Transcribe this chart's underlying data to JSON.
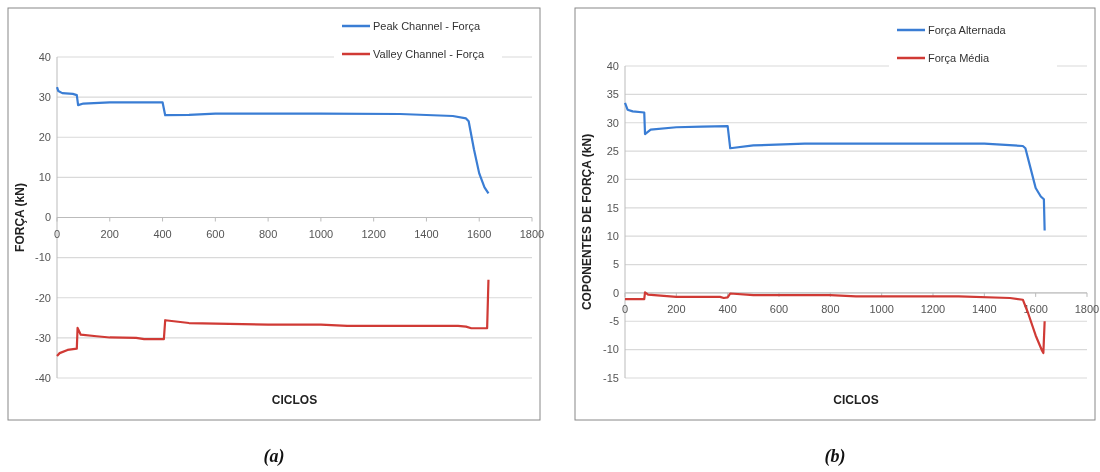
{
  "chart_data": [
    {
      "type": "line",
      "xlabel": "CICLOS",
      "ylabel": "FORÇA (kN)",
      "annotations": [
        "(a)"
      ],
      "xlim": [
        0,
        1800
      ],
      "xticks": [
        0,
        200,
        400,
        600,
        800,
        1000,
        1200,
        1400,
        1600,
        1800
      ],
      "ylim": [
        -40,
        40
      ],
      "yticks": [
        -40,
        -30,
        -20,
        -10,
        0,
        10,
        20,
        30,
        40
      ],
      "grid": "y",
      "legend": "top right",
      "line_style": "solid",
      "marker": "none",
      "series": [
        {
          "name": "Peak Channel - Força",
          "color": "#3a7dd4",
          "x": [
            0,
            5,
            20,
            60,
            75,
            80,
            100,
            200,
            400,
            410,
            500,
            600,
            1000,
            1300,
            1500,
            1550,
            1560,
            1580,
            1600,
            1620,
            1635
          ],
          "values": [
            32.5,
            31.5,
            31,
            30.8,
            30.5,
            28,
            28.4,
            28.7,
            28.7,
            25.5,
            25.6,
            25.9,
            25.9,
            25.8,
            25.3,
            24.7,
            24,
            17,
            11,
            7.5,
            6
          ]
        },
        {
          "name": "Valley Channel - Força",
          "color": "#d03a35",
          "x": [
            0,
            10,
            40,
            75,
            78,
            90,
            150,
            200,
            300,
            330,
            405,
            410,
            500,
            800,
            1000,
            1100,
            1520,
            1550,
            1570,
            1630,
            1635
          ],
          "values": [
            -34.5,
            -33.8,
            -33,
            -32.7,
            -27.5,
            -29.2,
            -29.6,
            -29.9,
            -30,
            -30.3,
            -30.3,
            -25.6,
            -26.3,
            -26.7,
            -26.7,
            -27,
            -27,
            -27.2,
            -27.6,
            -27.6,
            -15.5
          ]
        }
      ]
    },
    {
      "type": "line",
      "xlabel": "CICLOS",
      "ylabel": "COPONENTES DE FORÇA (kN)",
      "annotations": [
        "(b)"
      ],
      "xlim": [
        0,
        1800
      ],
      "xticks": [
        0,
        200,
        400,
        600,
        800,
        1000,
        1200,
        1400,
        1600,
        1800
      ],
      "ylim": [
        -15,
        40
      ],
      "yticks": [
        -15,
        -10,
        -5,
        0,
        5,
        10,
        15,
        20,
        25,
        30,
        35,
        40
      ],
      "grid": "y",
      "legend": "top right",
      "line_style": "solid",
      "marker": "none",
      "series": [
        {
          "name": "Força Alternada",
          "color": "#3a7dd4",
          "x": [
            0,
            10,
            30,
            75,
            78,
            100,
            200,
            300,
            400,
            410,
            500,
            700,
            1400,
            1550,
            1560,
            1580,
            1600,
            1620,
            1632,
            1635
          ],
          "values": [
            33.5,
            32.3,
            32,
            31.8,
            28,
            28.8,
            29.2,
            29.3,
            29.4,
            25.5,
            26,
            26.3,
            26.3,
            25.9,
            25.5,
            22,
            18.5,
            17,
            16.5,
            11
          ]
        },
        {
          "name": "Força Média",
          "color": "#d03a35",
          "x": [
            0,
            75,
            78,
            90,
            200,
            370,
            385,
            400,
            410,
            500,
            800,
            900,
            1300,
            1500,
            1550,
            1570,
            1600,
            1625,
            1630,
            1635
          ],
          "values": [
            -1.1,
            -1.1,
            0.1,
            -0.3,
            -0.7,
            -0.7,
            -0.9,
            -0.8,
            -0.1,
            -0.4,
            -0.4,
            -0.6,
            -0.6,
            -0.9,
            -1.2,
            -3.5,
            -7.5,
            -10.2,
            -10.6,
            -5
          ]
        }
      ]
    }
  ]
}
